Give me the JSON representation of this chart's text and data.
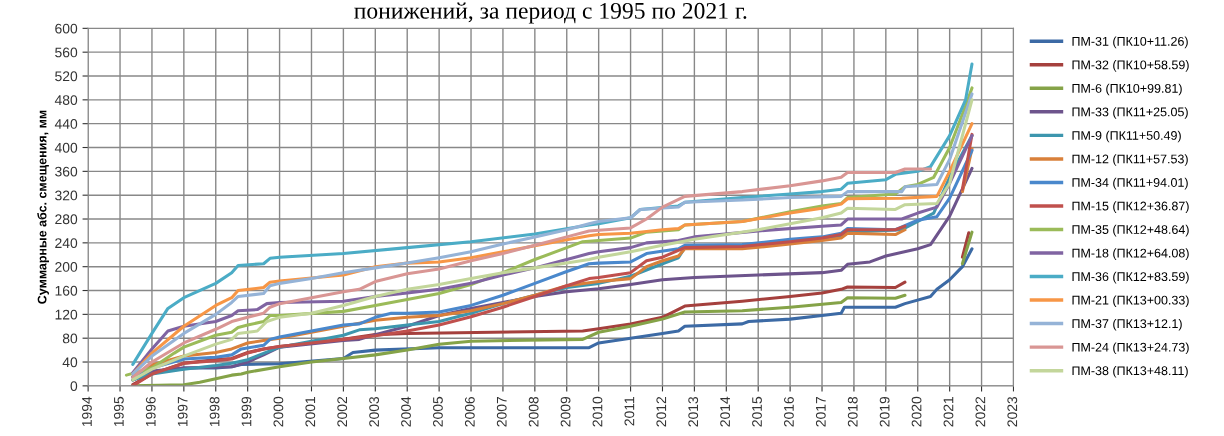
{
  "chart_data": {
    "type": "line",
    "title": "понижений, за период с 1995 по 2021 г.",
    "ylabel": "Суммарные абс. смещения, мм",
    "xlim": [
      1994,
      2023
    ],
    "xticks": [
      1994,
      1995,
      1996,
      1997,
      1998,
      1999,
      2000,
      2001,
      2002,
      2003,
      2004,
      2005,
      2006,
      2007,
      2008,
      2009,
      2010,
      2011,
      2012,
      2013,
      2014,
      2015,
      2016,
      2017,
      2018,
      2019,
      2020,
      2021,
      2022,
      2023
    ],
    "ylim": [
      0,
      600
    ],
    "yticks": [
      0,
      40,
      80,
      120,
      160,
      200,
      240,
      280,
      320,
      360,
      400,
      440,
      480,
      520,
      560,
      600
    ],
    "grid": true,
    "legend": "right",
    "marker": "none",
    "line_style": "solid",
    "series": [
      {
        "name": "ПМ-31 (ПК10+11.26)",
        "color": "#3c6aa5",
        "x": [
          1995.4,
          1996,
          1997,
          1998,
          1998.5,
          1998.8,
          2000,
          2002,
          2002.3,
          2003,
          2005,
          2009.7,
          2010,
          2011,
          2012,
          2012.5,
          2012.7,
          2014.5,
          2014.7,
          2016,
          2017,
          2017.6,
          2017.7,
          2019.3,
          2019.6,
          2020.4,
          2020.6,
          2021,
          2021.4,
          2021.7
        ],
        "values": [
          10,
          22,
          30,
          30,
          32,
          36,
          37,
          46,
          56,
          60,
          64,
          64,
          72,
          80,
          88,
          92,
          100,
          104,
          108,
          112,
          118,
          122,
          132,
          132,
          138,
          150,
          162,
          178,
          200,
          230
        ]
      },
      {
        "name": "ПМ-32 (ПК10+58.59)",
        "color": "#a5403d",
        "x": [
          1995.4,
          1996,
          1997,
          1998,
          1998.5,
          1999,
          1999.5,
          2000,
          2001,
          2002,
          2003,
          2004,
          2009.5,
          2010,
          2011,
          2012,
          2012.7,
          2014.5,
          2016,
          2017,
          2017.6,
          2017.8,
          2019.3,
          2019.6,
          2020.5,
          2021.4,
          2021.6
        ],
        "values": [
          2,
          20,
          38,
          44,
          46,
          56,
          62,
          66,
          72,
          78,
          86,
          88,
          92,
          96,
          104,
          115,
          134,
          142,
          150,
          156,
          162,
          166,
          165,
          174,
          null,
          216,
          257
        ]
      },
      {
        "name": "ПМ-6 (ПК10+99.81)",
        "color": "#85a348",
        "x": [
          1995.4,
          1997,
          1997.5,
          1998,
          1998.5,
          1998.8,
          1999,
          2000,
          2001,
          2002,
          2003,
          2004,
          2005,
          2006,
          2009.5,
          2010,
          2011,
          2012,
          2012.7,
          2014.5,
          2016,
          2017.6,
          2017.8,
          2019.3,
          2019.6,
          2020.5,
          2021.4,
          2021.7
        ],
        "values": [
          0,
          2,
          6,
          12,
          18,
          20,
          23,
          32,
          40,
          46,
          52,
          60,
          70,
          75,
          78,
          90,
          100,
          112,
          124,
          126,
          132,
          140,
          148,
          147,
          152,
          null,
          205,
          258
        ]
      },
      {
        "name": "ПМ-33 (ПК11+25.05)",
        "color": "#6d548c",
        "x": [
          1995.4,
          1996,
          1997,
          1998.5,
          1999,
          1999.5,
          2000,
          2002,
          2002.5,
          2003,
          2004,
          2005,
          2006,
          2007,
          2008,
          2009,
          2010,
          2011,
          2012,
          2013,
          2015,
          2017,
          2017.6,
          2017.8,
          2018.5,
          2019,
          2020,
          2020.4,
          2021,
          2021.7
        ],
        "values": [
          10,
          25,
          30,
          32,
          40,
          52,
          65,
          76,
          78,
          86,
          100,
          118,
          130,
          140,
          150,
          158,
          163,
          170,
          178,
          182,
          186,
          190,
          194,
          204,
          208,
          218,
          230,
          237,
          285,
          365
        ]
      },
      {
        "name": "ПМ-9 (ПК11+50.49)",
        "color": "#3d96ae",
        "x": [
          1995.4,
          1996,
          1997,
          1998,
          1998.5,
          1999,
          2000,
          2001,
          2002,
          2002.5,
          2003,
          2004,
          2005,
          2006,
          2007,
          2008,
          2009,
          2010,
          2011,
          2012,
          2012.5,
          2012.7,
          2014.5,
          2016,
          2017,
          2017.6,
          2017.8,
          2019.5,
          2020,
          2020.5,
          2021,
          2021.7
        ],
        "values": [
          10,
          20,
          28,
          34,
          38,
          44,
          65,
          75,
          85,
          94,
          96,
          102,
          108,
          122,
          138,
          152,
          165,
          172,
          184,
          205,
          215,
          232,
          234,
          240,
          246,
          250,
          258,
          262,
          276,
          290,
          350,
          420
        ]
      },
      {
        "name": "ПМ-12 (ПК11+57.53)",
        "color": "#d9803a",
        "x": [
          1995.4,
          1996,
          1997,
          1998,
          1998.5,
          1999,
          1999.5,
          2000,
          2002,
          2003,
          2004,
          2005,
          2006,
          2007,
          2008,
          2009,
          2010,
          2011,
          2011.5,
          2012,
          2012.5,
          2012.7,
          2014.5,
          2016,
          2017,
          2017.6,
          2017.8,
          2019.3,
          2019.6,
          2020.5,
          2021.4,
          2021.7
        ],
        "values": [
          15,
          35,
          50,
          56,
          62,
          72,
          76,
          80,
          100,
          110,
          115,
          118,
          126,
          138,
          152,
          168,
          175,
          180,
          200,
          210,
          218,
          230,
          230,
          238,
          244,
          248,
          256,
          254,
          262,
          null,
          326,
          398
        ]
      },
      {
        "name": "ПМ-34 (ПК11+94.01)",
        "color": "#4a88cc",
        "x": [
          1995.4,
          1996,
          1997,
          1998,
          1998.5,
          1998.8,
          1999.5,
          1999.7,
          2000,
          2001,
          2002,
          2002.5,
          2003,
          2003.5,
          2004,
          2005,
          2006,
          2007,
          2008,
          2009,
          2009.7,
          2010,
          2011,
          2011.5,
          2012.5,
          2012.7,
          2014.5,
          2016,
          2017,
          2017.6,
          2017.8,
          2019.3,
          2020,
          2020.6,
          2021,
          2021.7
        ],
        "values": [
          15,
          30,
          45,
          48,
          52,
          62,
          68,
          78,
          82,
          92,
          102,
          104,
          115,
          122,
          122,
          124,
          135,
          152,
          172,
          192,
          205,
          206,
          208,
          222,
          230,
          236,
          237,
          246,
          250,
          256,
          264,
          262,
          278,
          284,
          315,
          395
        ]
      },
      {
        "name": "ПМ-15 (ПК12+36.87)",
        "color": "#c0504d",
        "x": [
          1995.4,
          1996,
          1997,
          1998,
          1998.5,
          1999,
          1999.5,
          2000,
          2001,
          2002,
          2003,
          2004,
          2005,
          2006,
          2007,
          2008,
          2009,
          2009.7,
          2010,
          2011,
          2011.5,
          2012,
          2012.7,
          2014.5,
          2016,
          2017,
          2017.6,
          2017.8,
          2019.3,
          2019.6,
          2020.5,
          2021.4,
          2021.7
        ],
        "values": [
          0,
          20,
          38,
          42,
          45,
          55,
          62,
          66,
          72,
          78,
          84,
          92,
          102,
          116,
          132,
          150,
          168,
          180,
          182,
          190,
          210,
          216,
          232,
          234,
          242,
          248,
          254,
          262,
          262,
          268,
          null,
          330,
          422
        ]
      },
      {
        "name": "ПМ-35 (ПК12+48.64)",
        "color": "#9bbb59",
        "x": [
          1995.2,
          1996,
          1996.7,
          1997,
          1998,
          1998.5,
          1998.7,
          1999,
          1999.5,
          1999.7,
          2000,
          2002,
          2003,
          2004,
          2005,
          2006,
          2007,
          2008,
          2009,
          2009.5,
          2010,
          2011,
          2011.5,
          2012.5,
          2012.7,
          2014.5,
          2016,
          2017,
          2017.6,
          2017.8,
          2019.3,
          2019.6,
          2020,
          2020.5,
          2021,
          2021.5,
          2021.7
        ],
        "values": [
          18,
          30,
          55,
          65,
          85,
          90,
          98,
          102,
          108,
          118,
          118,
          125,
          135,
          145,
          155,
          170,
          190,
          212,
          232,
          242,
          244,
          248,
          258,
          262,
          270,
          276,
          292,
          302,
          306,
          316,
          322,
          334,
          338,
          350,
          400,
          470,
          500
        ]
      },
      {
        "name": "ПМ-18 (ПК12+64.08)",
        "color": "#8064a2",
        "x": [
          1995.4,
          1996,
          1996.5,
          1997,
          1998,
          1998.5,
          1998.7,
          1999.3,
          1999.6,
          2000,
          2002,
          2003,
          2004,
          2005,
          2006,
          2007,
          2008,
          2009,
          2009.7,
          2010,
          2011,
          2011.5,
          2012.5,
          2013,
          2015,
          2017,
          2017.6,
          2017.8,
          2019.5,
          2020,
          2020.6,
          2021,
          2021.7
        ],
        "values": [
          22,
          62,
          92,
          100,
          108,
          118,
          126,
          128,
          138,
          140,
          142,
          150,
          156,
          162,
          172,
          186,
          198,
          212,
          222,
          225,
          232,
          240,
          244,
          250,
          260,
          268,
          270,
          280,
          280,
          290,
          300,
          340,
          420
        ]
      },
      {
        "name": "ПМ-36 (ПК12+83.59)",
        "color": "#4bacc6",
        "x": [
          1995.4,
          1996,
          1996.5,
          1997,
          1998,
          1998.5,
          1998.7,
          1999.5,
          1999.7,
          2000,
          2002,
          2004,
          2006,
          2008,
          2009.7,
          2010,
          2011,
          2011.3,
          2012.5,
          2012.7,
          2014.5,
          2016,
          2017,
          2017.6,
          2017.8,
          2019,
          2019.3,
          2020,
          2020.4,
          2021,
          2021.5,
          2021.7
        ],
        "values": [
          36,
          88,
          130,
          148,
          172,
          190,
          202,
          205,
          214,
          216,
          222,
          232,
          242,
          255,
          270,
          272,
          282,
          296,
          302,
          308,
          316,
          322,
          326,
          330,
          340,
          346,
          355,
          360,
          368,
          420,
          480,
          540
        ]
      },
      {
        "name": "ПМ-21 (ПК13+00.33)",
        "color": "#f79646",
        "x": [
          1995.4,
          1996,
          1997,
          1998,
          1998.5,
          1998.7,
          1999.5,
          1999.7,
          2000,
          2002,
          2003,
          2004,
          2005,
          2006,
          2007,
          2008,
          2009,
          2009.7,
          2010,
          2011,
          2012,
          2012.5,
          2012.7,
          2014.5,
          2016,
          2017,
          2017.6,
          2017.8,
          2019.5,
          2020.6,
          2021,
          2021.7
        ],
        "values": [
          20,
          55,
          100,
          135,
          148,
          160,
          165,
          174,
          176,
          186,
          200,
          206,
          208,
          215,
          225,
          235,
          245,
          252,
          254,
          256,
          262,
          264,
          270,
          276,
          290,
          298,
          305,
          314,
          315,
          318,
          360,
          440
        ]
      },
      {
        "name": "ПМ-37 (ПК13+12.1)",
        "color": "#95b3d7",
        "x": [
          1995.4,
          1996,
          1997,
          1998,
          1998.5,
          1998.7,
          1999.5,
          1999.7,
          2000,
          2001,
          2002,
          2003,
          2004,
          2005,
          2006,
          2007,
          2008,
          2009,
          2009.7,
          2010,
          2011,
          2011.3,
          2012.5,
          2012.7,
          2014.5,
          2016,
          2017.6,
          2017.8,
          2019.5,
          2019.6,
          2020.6,
          2021,
          2021.7
        ],
        "values": [
          20,
          50,
          88,
          120,
          140,
          150,
          155,
          168,
          172,
          180,
          190,
          198,
          206,
          215,
          225,
          238,
          250,
          262,
          272,
          276,
          282,
          296,
          300,
          308,
          312,
          316,
          318,
          326,
          326,
          334,
          338,
          380,
          490
        ]
      },
      {
        "name": "ПМ-24 (ПК13+24.73)",
        "color": "#d99694",
        "x": [
          1995.4,
          1996,
          1997,
          1998,
          1998.5,
          1999,
          1999.5,
          1999.7,
          2000,
          2001,
          2002,
          2002.5,
          2003,
          2004,
          2005,
          2006,
          2007,
          2008,
          2009,
          2009.7,
          2010,
          2011,
          2011.5,
          2012,
          2012.7,
          2014.5,
          2016,
          2017,
          2017.6,
          2017.8,
          2019.3,
          2019.6,
          2020.4
        ],
        "values": [
          14,
          40,
          72,
          95,
          108,
          115,
          122,
          132,
          138,
          148,
          158,
          162,
          175,
          188,
          196,
          210,
          222,
          236,
          250,
          260,
          261,
          265,
          280,
          300,
          318,
          326,
          336,
          344,
          350,
          358,
          358,
          364,
          364
        ]
      },
      {
        "name": "ПМ-38 (ПК13+48.11)",
        "color": "#c3d69b",
        "x": [
          1995.4,
          1996,
          1997,
          1998,
          1998.5,
          1998.7,
          1999.3,
          1999.6,
          2000,
          2001,
          2002,
          2003,
          2004,
          2005,
          2006,
          2007,
          2008,
          2009,
          2009.7,
          2010,
          2011,
          2012,
          2013,
          2015,
          2016,
          2017,
          2017.6,
          2017.8,
          2019.3,
          2019.6,
          2020.6,
          2021,
          2021.7
        ],
        "values": [
          10,
          28,
          50,
          70,
          78,
          88,
          92,
          108,
          115,
          122,
          135,
          150,
          162,
          170,
          180,
          190,
          198,
          206,
          212,
          216,
          225,
          236,
          246,
          262,
          272,
          282,
          290,
          298,
          296,
          304,
          306,
          340,
          480
        ]
      }
    ]
  }
}
